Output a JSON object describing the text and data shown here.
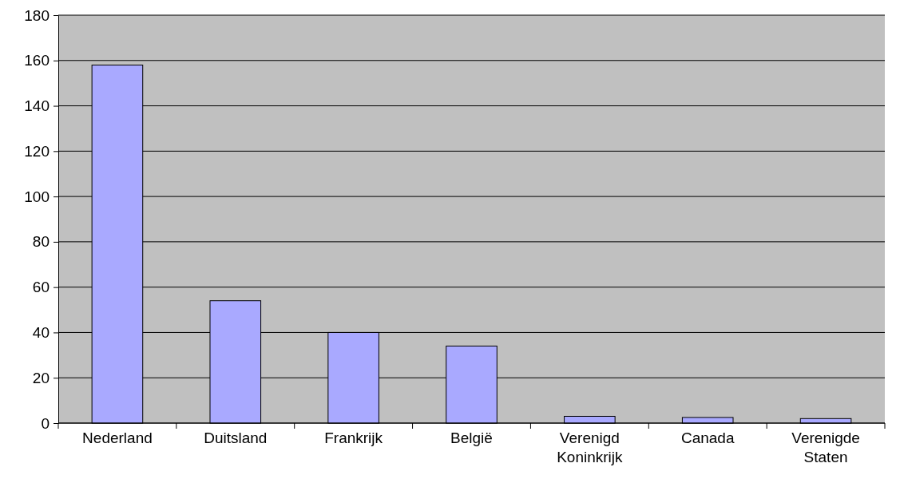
{
  "chart_data": {
    "type": "bar",
    "categories": [
      "Nederland",
      "Duitsland",
      "Frankrijk",
      "België",
      "Verenigd Koninkrijk",
      "Canada",
      "Verenigde Staten"
    ],
    "values": [
      158,
      54,
      40,
      34,
      3,
      2.5,
      2
    ],
    "color": "#a9a9ff",
    "ylim": [
      0,
      180
    ],
    "yticks": [
      0,
      20,
      40,
      60,
      80,
      100,
      120,
      140,
      160,
      180
    ],
    "grid": "y"
  }
}
